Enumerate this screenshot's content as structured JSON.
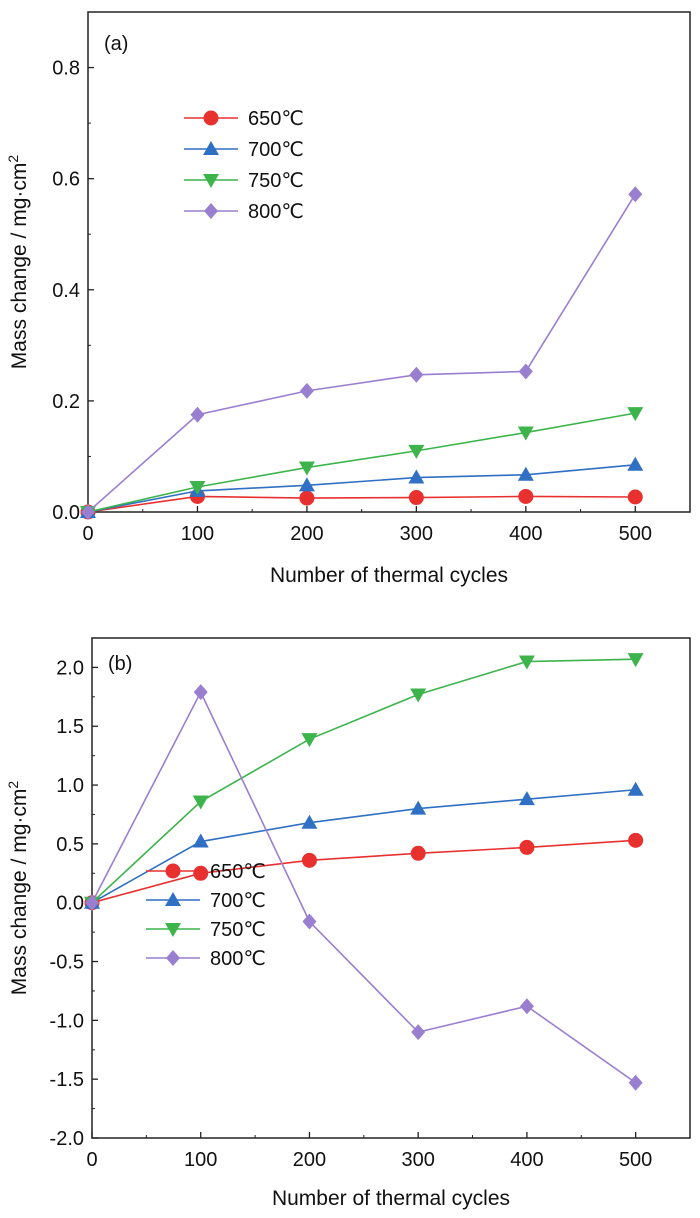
{
  "chart_data": [
    {
      "type": "line",
      "panel_label": "(a)",
      "title": "",
      "xlabel": "Number of thermal cycles",
      "ylabel": "Mass change  / mg·cm",
      "ylabel_sup": "2",
      "x": [
        0,
        100,
        200,
        300,
        400,
        500
      ],
      "xlim": [
        0,
        550
      ],
      "ylim": [
        0,
        0.9
      ],
      "xticks": [
        "0",
        "100",
        "200",
        "300",
        "400",
        "500"
      ],
      "xtick_values": [
        0,
        100,
        200,
        300,
        400,
        500
      ],
      "yticks": [
        "0.0",
        "0.2",
        "0.4",
        "0.6",
        "0.8"
      ],
      "ytick_values": [
        0,
        0.2,
        0.4,
        0.6,
        0.8
      ],
      "legend_position": "upper-left",
      "grid": false,
      "series": [
        {
          "name": "650℃",
          "color": "#e8312f",
          "marker": "circle",
          "values": [
            0,
            0.028,
            0.025,
            0.026,
            0.028,
            0.027
          ]
        },
        {
          "name": "700℃",
          "color": "#2f6fc4",
          "marker": "triangle-up",
          "values": [
            0,
            0.038,
            0.048,
            0.062,
            0.067,
            0.085
          ]
        },
        {
          "name": "750℃",
          "color": "#3cb44b",
          "marker": "triangle-down",
          "values": [
            0,
            0.045,
            0.08,
            0.11,
            0.143,
            0.178
          ]
        },
        {
          "name": "800℃",
          "color": "#9a7fd1",
          "marker": "diamond",
          "values": [
            0,
            0.175,
            0.218,
            0.247,
            0.253,
            0.572
          ]
        }
      ]
    },
    {
      "type": "line",
      "panel_label": "(b)",
      "title": "",
      "xlabel": "Number of thermal cycles",
      "ylabel": "Mass change / mg·cm",
      "ylabel_sup": "2",
      "x": [
        0,
        100,
        200,
        300,
        400,
        500
      ],
      "xlim": [
        0,
        550
      ],
      "ylim": [
        -2.0,
        2.25
      ],
      "xticks": [
        "0",
        "100",
        "200",
        "300",
        "400",
        "500"
      ],
      "xtick_values": [
        0,
        100,
        200,
        300,
        400,
        500
      ],
      "yticks": [
        "-2.0",
        "-1.5",
        "-1.0",
        "-0.5",
        "0.0",
        "0.5",
        "1.0",
        "1.5",
        "2.0"
      ],
      "ytick_values": [
        -2.0,
        -1.5,
        -1.0,
        -0.5,
        0,
        0.5,
        1.0,
        1.5,
        2.0
      ],
      "legend_position": "lower-left",
      "grid": false,
      "series": [
        {
          "name": "650℃",
          "color": "#e8312f",
          "marker": "circle",
          "values": [
            0,
            0.25,
            0.36,
            0.42,
            0.47,
            0.53
          ]
        },
        {
          "name": "700℃",
          "color": "#2f6fc4",
          "marker": "triangle-up",
          "values": [
            0,
            0.52,
            0.68,
            0.8,
            0.88,
            0.96
          ]
        },
        {
          "name": "750℃",
          "color": "#3cb44b",
          "marker": "triangle-down",
          "values": [
            0,
            0.86,
            1.39,
            1.77,
            2.05,
            2.07
          ]
        },
        {
          "name": "800℃",
          "color": "#9a7fd1",
          "marker": "diamond",
          "values": [
            0,
            1.79,
            -0.16,
            -1.1,
            -0.88,
            -1.53
          ]
        }
      ]
    }
  ]
}
